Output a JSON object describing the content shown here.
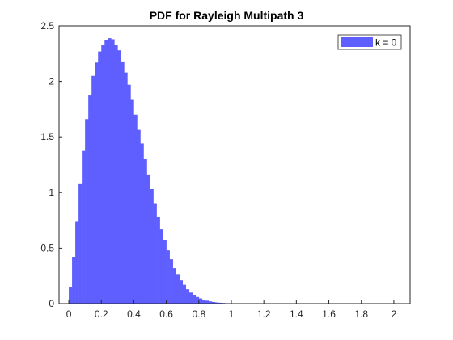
{
  "chart_data": {
    "type": "bar",
    "title": "PDF for Rayleigh Multipath 3",
    "xlabel": "",
    "ylabel": "",
    "xlim": [
      -0.06,
      2.1
    ],
    "ylim": [
      0,
      2.5
    ],
    "xticks": [
      0,
      0.2,
      0.4,
      0.6,
      0.8,
      1,
      1.2,
      1.4,
      1.6,
      1.8,
      2
    ],
    "xtick_labels": [
      "0",
      "0.2",
      "0.4",
      "0.6",
      "0.8",
      "1",
      "1.2",
      "1.4",
      "1.6",
      "1.8",
      "2"
    ],
    "yticks": [
      0,
      0.5,
      1,
      1.5,
      2,
      2.5
    ],
    "ytick_labels": [
      "0",
      "0.5",
      "1",
      "1.5",
      "2",
      "2.5"
    ],
    "grid": false,
    "legend_position": "top-right",
    "series": [
      {
        "name": "k = 0",
        "color": "#5F5FFF",
        "bin_width": 0.02,
        "x": [
          0.01,
          0.03,
          0.05,
          0.07,
          0.09,
          0.11,
          0.13,
          0.15,
          0.17,
          0.19,
          0.21,
          0.23,
          0.25,
          0.27,
          0.29,
          0.31,
          0.33,
          0.35,
          0.37,
          0.39,
          0.41,
          0.43,
          0.45,
          0.47,
          0.49,
          0.51,
          0.53,
          0.55,
          0.57,
          0.59,
          0.61,
          0.63,
          0.65,
          0.67,
          0.69,
          0.71,
          0.73,
          0.75,
          0.77,
          0.79,
          0.81,
          0.83,
          0.85,
          0.87,
          0.89,
          0.91,
          0.93,
          0.95,
          0.97,
          0.99,
          1.01,
          1.03,
          1.05,
          1.07,
          1.09,
          1.11,
          1.13,
          1.15,
          1.17,
          1.19
        ],
        "values": [
          0.15,
          0.42,
          0.74,
          1.08,
          1.38,
          1.66,
          1.88,
          2.05,
          2.17,
          2.27,
          2.33,
          2.37,
          2.39,
          2.38,
          2.33,
          2.28,
          2.18,
          2.08,
          1.97,
          1.84,
          1.7,
          1.57,
          1.44,
          1.3,
          1.16,
          1.03,
          0.9,
          0.78,
          0.67,
          0.57,
          0.48,
          0.4,
          0.32,
          0.26,
          0.21,
          0.17,
          0.13,
          0.1,
          0.08,
          0.06,
          0.047,
          0.036,
          0.027,
          0.02,
          0.015,
          0.011,
          0.008,
          0.006,
          0.004,
          0.003,
          0.002,
          0.0015,
          0.001,
          0.001,
          0.0007,
          0.0005,
          0.0004,
          0.0003,
          0.0002,
          0.0001
        ]
      }
    ]
  }
}
